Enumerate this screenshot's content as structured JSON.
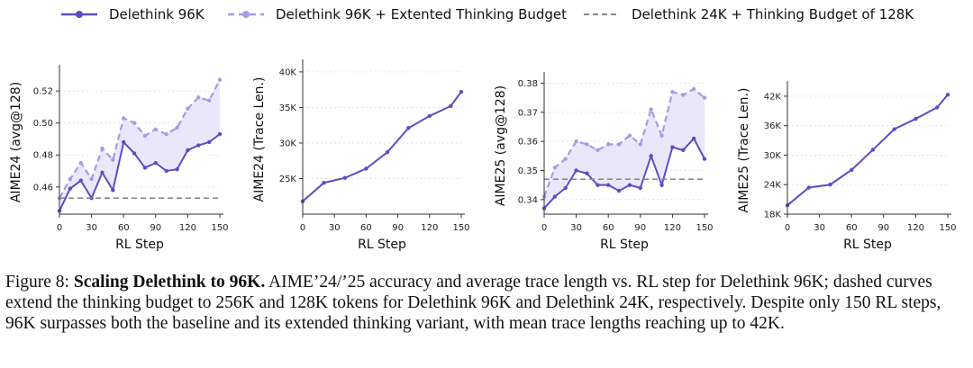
{
  "colors": {
    "solid": "#5b4ec4",
    "dashed": "#a69be6",
    "fill": "#ebe7fb",
    "ref": "#8a8a8a"
  },
  "legend": [
    {
      "label": "Delethink 96K",
      "style": "solid"
    },
    {
      "label": "Delethink 96K + Extented Thinking Budget",
      "style": "dashed"
    },
    {
      "label": "Delethink 24K + Thinking Budget of 128K",
      "style": "ref"
    }
  ],
  "chart_data": [
    {
      "type": "line",
      "xlabel": "RL Step",
      "ylabel": "AIME24 (avg@128)",
      "xlim": [
        0,
        150
      ],
      "ylim": [
        0.443,
        0.533
      ],
      "xticks": [
        0,
        30,
        60,
        90,
        120,
        150
      ],
      "yticks": [
        0.46,
        0.48,
        0.5,
        0.52
      ],
      "ytick_labels": [
        "0.46",
        "0.48",
        "0.50",
        "0.52"
      ],
      "series": [
        {
          "name": "Delethink 96K",
          "style": "solid",
          "x": [
            0,
            10,
            20,
            30,
            40,
            50,
            60,
            70,
            80,
            90,
            100,
            110,
            120,
            130,
            140,
            150
          ],
          "y": [
            0.445,
            0.459,
            0.464,
            0.453,
            0.469,
            0.458,
            0.488,
            0.481,
            0.472,
            0.475,
            0.47,
            0.471,
            0.483,
            0.486,
            0.488,
            0.493
          ]
        },
        {
          "name": "Delethink 96K + Extented Thinking Budget",
          "style": "dashed",
          "x": [
            0,
            10,
            20,
            30,
            40,
            50,
            60,
            70,
            80,
            90,
            100,
            110,
            120,
            130,
            140,
            150
          ],
          "y": [
            0.453,
            0.465,
            0.475,
            0.465,
            0.484,
            0.477,
            0.503,
            0.5,
            0.492,
            0.496,
            0.493,
            0.497,
            0.509,
            0.516,
            0.514,
            0.527
          ]
        },
        {
          "name": "Delethink 24K + Thinking Budget of 128K",
          "style": "ref",
          "x": [
            0,
            150
          ],
          "y": [
            0.453,
            0.453
          ]
        }
      ],
      "fill_between": true
    },
    {
      "type": "line",
      "xlabel": "RL Step",
      "ylabel": "AIME24 (Trace Len.)",
      "xlim": [
        0,
        150
      ],
      "ylim": [
        20000,
        41000
      ],
      "xticks": [
        0,
        30,
        60,
        90,
        120,
        150
      ],
      "yticks": [
        25000,
        30000,
        35000,
        40000
      ],
      "ytick_labels": [
        "25K",
        "30K",
        "35K",
        "40K"
      ],
      "series": [
        {
          "name": "Delethink 96K",
          "style": "solid",
          "x": [
            0,
            20,
            40,
            60,
            80,
            100,
            120,
            140,
            150
          ],
          "y": [
            21800,
            24400,
            25100,
            26400,
            28700,
            32100,
            33800,
            35200,
            37200
          ]
        }
      ],
      "fill_between": false
    },
    {
      "type": "line",
      "xlabel": "RL Step",
      "ylabel": "AIME25 (avg@128)",
      "xlim": [
        0,
        150
      ],
      "ylim": [
        0.335,
        0.382
      ],
      "xticks": [
        0,
        30,
        60,
        90,
        120,
        150
      ],
      "yticks": [
        0.34,
        0.35,
        0.36,
        0.37,
        0.38
      ],
      "ytick_labels": [
        "0.34",
        "0.35",
        "0.36",
        "0.37",
        "0.38"
      ],
      "series": [
        {
          "name": "Delethink 96K",
          "style": "solid",
          "x": [
            0,
            10,
            20,
            30,
            40,
            50,
            60,
            70,
            80,
            90,
            100,
            110,
            120,
            130,
            140,
            150
          ],
          "y": [
            0.337,
            0.341,
            0.344,
            0.35,
            0.349,
            0.345,
            0.345,
            0.343,
            0.345,
            0.344,
            0.355,
            0.345,
            0.358,
            0.357,
            0.361,
            0.354
          ]
        },
        {
          "name": "Delethink 96K + Extented Thinking Budget",
          "style": "dashed",
          "x": [
            0,
            10,
            20,
            30,
            40,
            50,
            60,
            70,
            80,
            90,
            100,
            110,
            120,
            130,
            140,
            150
          ],
          "y": [
            0.341,
            0.351,
            0.354,
            0.36,
            0.359,
            0.357,
            0.359,
            0.359,
            0.362,
            0.359,
            0.371,
            0.362,
            0.377,
            0.376,
            0.378,
            0.375
          ]
        },
        {
          "name": "Delethink 24K + Thinking Budget of 128K",
          "style": "ref",
          "x": [
            0,
            150
          ],
          "y": [
            0.347,
            0.347
          ]
        }
      ],
      "fill_between": true
    },
    {
      "type": "line",
      "xlabel": "RL Step",
      "ylabel": "AIME25 (Trace Len.)",
      "xlim": [
        0,
        150
      ],
      "ylim": [
        18000,
        44000
      ],
      "xticks": [
        0,
        30,
        60,
        90,
        120,
        150
      ],
      "yticks": [
        18000,
        24000,
        30000,
        36000,
        42000
      ],
      "ytick_labels": [
        "18K",
        "24K",
        "30K",
        "36K",
        "42K"
      ],
      "series": [
        {
          "name": "Delethink 96K",
          "style": "solid",
          "x": [
            0,
            20,
            40,
            60,
            80,
            100,
            120,
            140,
            150
          ],
          "y": [
            19800,
            23400,
            24000,
            27000,
            31100,
            35300,
            37400,
            39700,
            42300
          ]
        }
      ],
      "fill_between": false
    }
  ],
  "caption": {
    "label": "Figure 8: ",
    "bold": "Scaling Delethink to 96K.",
    "text": " AIME’24/’25 accuracy and average trace length vs. RL step for Delethink 96K; dashed curves extend the thinking budget to 256K and 128K tokens for Delethink 96K and Delethink 24K, respectively. Despite only 150 RL steps, 96K surpasses both the baseline and its extended thinking variant, with mean trace lengths reaching up to 42K."
  }
}
